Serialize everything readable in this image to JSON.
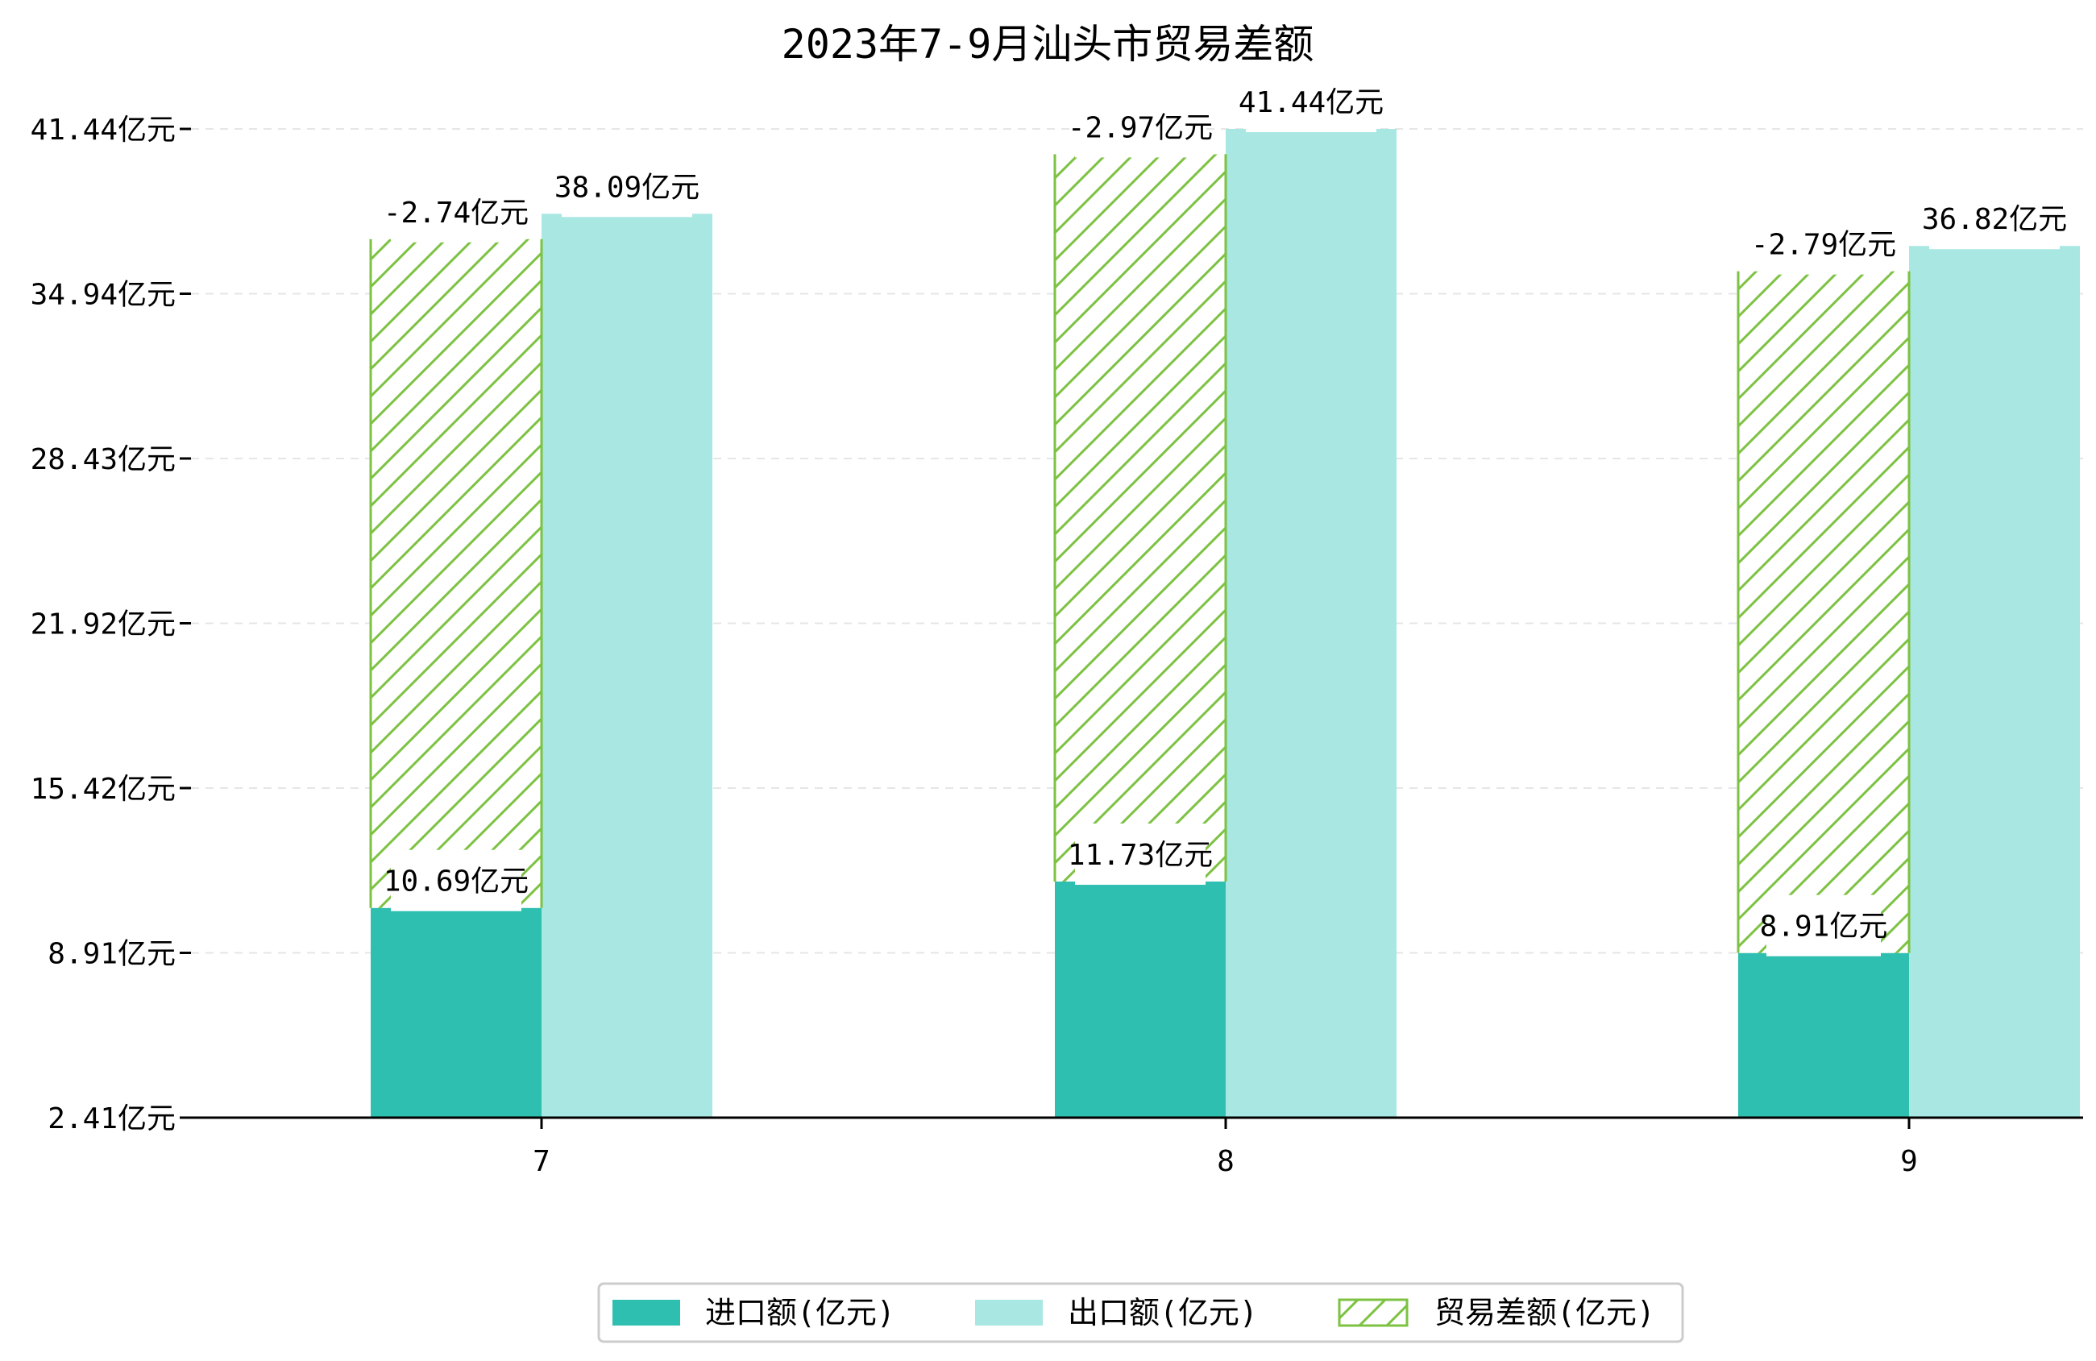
{
  "chart_data": {
    "type": "bar",
    "title": "2023年7-9月汕头市贸易差额",
    "categories": [
      "7",
      "8",
      "9"
    ],
    "ylim": [
      2.41,
      41.44
    ],
    "y_ticks": [
      "2.41亿元",
      "8.91亿元",
      "15.42亿元",
      "21.92亿元",
      "28.43亿元",
      "34.94亿元",
      "41.44亿元"
    ],
    "grid": true,
    "legend_position": "bottom",
    "series": [
      {
        "name": "进口额(亿元)",
        "values": [
          10.69,
          11.73,
          8.91
        ],
        "labels": [
          "10.69亿元",
          "11.73亿元",
          "8.91亿元"
        ],
        "color": "#2fbfb0"
      },
      {
        "name": "出口额(亿元)",
        "values": [
          38.09,
          41.44,
          36.82
        ],
        "labels": [
          "38.09亿元",
          "41.44亿元",
          "36.82亿元"
        ],
        "color": "#a8e7e2"
      },
      {
        "name": "贸易差额(亿元)",
        "values": [
          -2.74,
          -2.97,
          -2.79
        ],
        "labels": [
          "-2.74亿元",
          "-2.97亿元",
          "-2.79亿元"
        ],
        "color": "#7dc242",
        "pattern": "hatch"
      }
    ]
  }
}
